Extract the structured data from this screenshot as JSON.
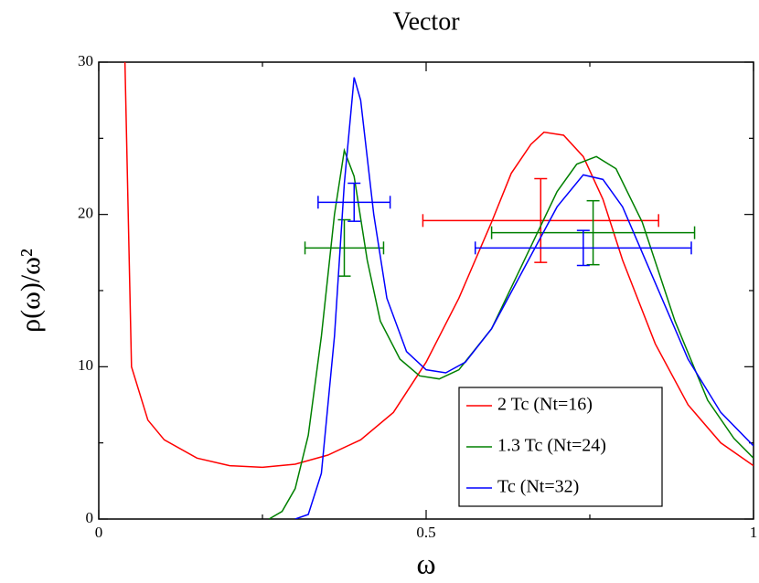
{
  "chart_data": {
    "type": "line",
    "title": "Vector",
    "xlabel": "ω",
    "ylabel": "ρ(ω)/ω²",
    "xlim": [
      0,
      1
    ],
    "ylim": [
      0,
      30
    ],
    "xticks": [
      0,
      0.5,
      1
    ],
    "yticks": [
      0,
      10,
      20,
      30
    ],
    "xminorticks": [
      0.25,
      0.75
    ],
    "yminorticks": [
      5,
      15,
      25
    ],
    "legend": "lower right",
    "series": [
      {
        "name": "2 Tc  (Nt=16)",
        "color": "#ff0000",
        "x": [
          0.04,
          0.05,
          0.075,
          0.1,
          0.15,
          0.2,
          0.25,
          0.3,
          0.35,
          0.4,
          0.45,
          0.5,
          0.55,
          0.6,
          0.63,
          0.66,
          0.68,
          0.71,
          0.74,
          0.77,
          0.8,
          0.85,
          0.9,
          0.95,
          1.0
        ],
        "values": [
          30,
          10,
          6.5,
          5.2,
          4.0,
          3.5,
          3.4,
          3.6,
          4.2,
          5.2,
          7,
          10.3,
          14.5,
          19.5,
          22.7,
          24.6,
          25.4,
          25.2,
          23.8,
          21,
          17,
          11.5,
          7.5,
          5,
          3.5
        ],
        "points": [
          {
            "x": 0.675,
            "y": 19.6,
            "xerr": 0.18,
            "yerr": 2.75
          }
        ]
      },
      {
        "name": "1.3 Tc  (Nt=24)",
        "color": "#008000",
        "x": [
          0.26,
          0.28,
          0.3,
          0.32,
          0.34,
          0.36,
          0.375,
          0.39,
          0.41,
          0.43,
          0.46,
          0.49,
          0.52,
          0.55,
          0.6,
          0.65,
          0.7,
          0.73,
          0.76,
          0.79,
          0.83,
          0.88,
          0.93,
          0.97,
          1.0
        ],
        "values": [
          0,
          0.5,
          2,
          5.5,
          12,
          20,
          24.2,
          22.5,
          17,
          13,
          10.5,
          9.4,
          9.2,
          9.8,
          12.5,
          17,
          21.5,
          23.3,
          23.8,
          23,
          19.5,
          13,
          7.8,
          5.3,
          4
        ],
        "points": [
          {
            "x": 0.375,
            "y": 17.8,
            "xerr": 0.06,
            "yerr": 1.85
          },
          {
            "x": 0.755,
            "y": 18.8,
            "xerr": 0.155,
            "yerr": 2.1
          }
        ]
      },
      {
        "name": "Tc  (Nt=32)",
        "color": "#0000ff",
        "x": [
          0.3,
          0.32,
          0.34,
          0.36,
          0.375,
          0.39,
          0.4,
          0.42,
          0.44,
          0.47,
          0.5,
          0.53,
          0.56,
          0.6,
          0.65,
          0.7,
          0.74,
          0.77,
          0.8,
          0.85,
          0.9,
          0.95,
          1.0
        ],
        "values": [
          0,
          0.3,
          3,
          12,
          22,
          29,
          27.5,
          20,
          14.5,
          11,
          9.8,
          9.6,
          10.3,
          12.5,
          16.5,
          20.5,
          22.6,
          22.3,
          20.5,
          15.5,
          10.5,
          7,
          4.8
        ],
        "points": [
          {
            "x": 0.39,
            "y": 20.8,
            "xerr": 0.055,
            "yerr": 1.25
          },
          {
            "x": 0.74,
            "y": 17.8,
            "xerr": 0.165,
            "yerr": 1.15
          }
        ]
      }
    ]
  }
}
